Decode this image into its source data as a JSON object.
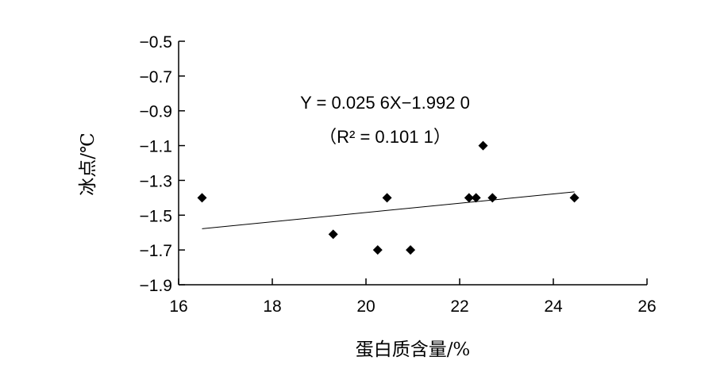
{
  "chart_data": {
    "type": "scatter",
    "xlabel": "蛋白质含量/%",
    "ylabel": "冰点/℃",
    "xlim": [
      16,
      26
    ],
    "ylim": [
      -1.9,
      -0.5
    ],
    "x_ticks": [
      "16",
      "18",
      "20",
      "22",
      "24",
      "26"
    ],
    "y_ticks": [
      "−0.5",
      "−0.7",
      "−0.9",
      "−1.1",
      "−1.3",
      "−1.5",
      "−1.7",
      "−1.9"
    ],
    "y_tick_values": [
      -0.5,
      -0.7,
      -0.9,
      -1.1,
      -1.3,
      -1.5,
      -1.7,
      -1.9
    ],
    "x_tick_values": [
      16,
      18,
      20,
      22,
      24,
      26
    ],
    "points": [
      {
        "x": 16.5,
        "y": -1.4
      },
      {
        "x": 19.3,
        "y": -1.61
      },
      {
        "x": 20.25,
        "y": -1.7
      },
      {
        "x": 20.45,
        "y": -1.4
      },
      {
        "x": 20.95,
        "y": -1.7
      },
      {
        "x": 22.2,
        "y": -1.4
      },
      {
        "x": 22.35,
        "y": -1.4
      },
      {
        "x": 22.5,
        "y": -1.1
      },
      {
        "x": 22.7,
        "y": -1.4
      },
      {
        "x": 24.45,
        "y": -1.4
      }
    ],
    "trendline": {
      "equation": "Y = 0.025 6X−1.992 0",
      "r2_text": "（R² = 0.101 1）",
      "start": {
        "x": 16.5,
        "y": -1.578
      },
      "end": {
        "x": 24.45,
        "y": -1.366
      }
    },
    "marker": "diamond",
    "grid": false,
    "legend": "none",
    "color": "#000000"
  }
}
